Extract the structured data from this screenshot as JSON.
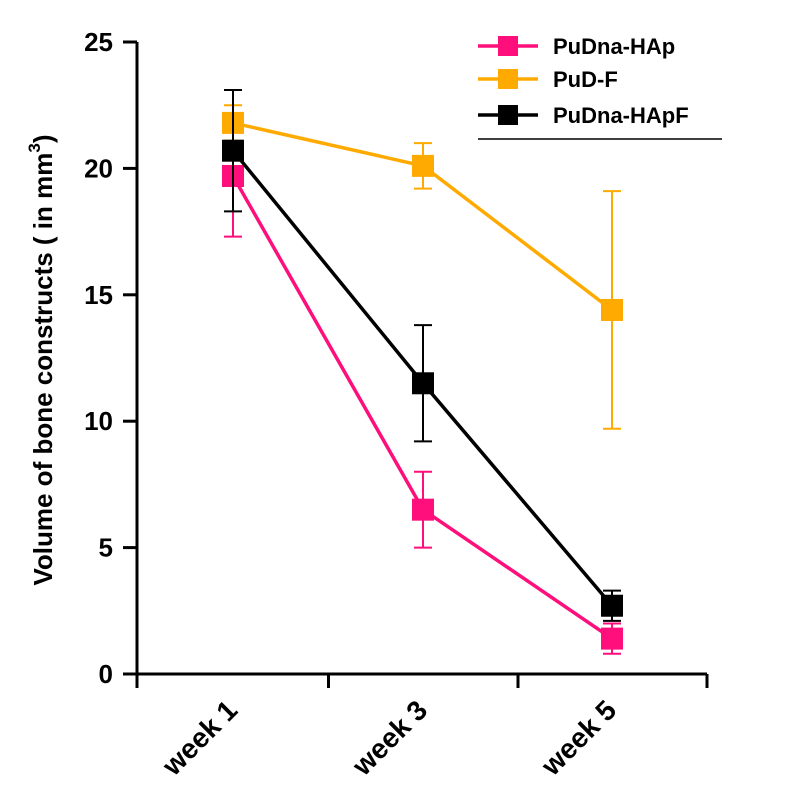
{
  "chart_data": {
    "type": "line",
    "title": "",
    "xlabel": "",
    "ylabel": "Volume of bone constructs ( in mm",
    "ylabel_superscript": "3",
    "ylabel_close": ")",
    "categories": [
      "week 1",
      "week 3",
      "week 5"
    ],
    "ylim": [
      0,
      25
    ],
    "yticks": [
      "0",
      "5",
      "10",
      "15",
      "20",
      "25"
    ],
    "ytick_values": [
      0,
      5,
      10,
      15,
      20,
      25
    ],
    "legend_position": "top-right",
    "series": [
      {
        "name": "PuDna-HAp",
        "color": "#ff0f7b",
        "values": [
          19.7,
          6.5,
          1.4
        ],
        "error": [
          2.4,
          1.5,
          0.6
        ]
      },
      {
        "name": "PuD-F",
        "color": "#ffaa00",
        "values": [
          21.8,
          20.1,
          14.4
        ],
        "error": [
          0.7,
          0.9,
          4.7
        ]
      },
      {
        "name": "PuDna-HApF",
        "color": "#000000",
        "values": [
          20.7,
          11.5,
          2.7
        ],
        "error": [
          2.4,
          2.3,
          0.6
        ]
      }
    ]
  }
}
